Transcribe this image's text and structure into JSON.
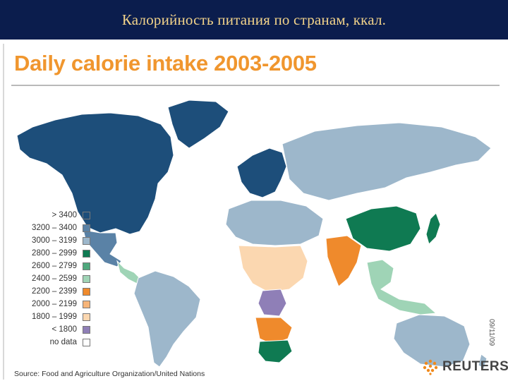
{
  "header": {
    "slide_title": "Калорийность питания по странам, ккал."
  },
  "map": {
    "title": "Daily calorie intake 2003-2005",
    "source": "Source: Food and Agriculture Organization/United Nations",
    "date_stamp": "09/11/09",
    "brand": "REUTERS",
    "colors": {
      "title": "#f0962e",
      "ocean": "#ffffff",
      "border": "#ffffff"
    },
    "legend": [
      {
        "label": "> 3400",
        "color": "#1d4e7a"
      },
      {
        "label": "3200 – 3400",
        "color": "#5a82a6"
      },
      {
        "label": "3000 – 3199",
        "color": "#9db7cb"
      },
      {
        "label": "2800 – 2999",
        "color": "#0f7a52"
      },
      {
        "label": "2600 – 2799",
        "color": "#4fa87d"
      },
      {
        "label": "2400 – 2599",
        "color": "#9fd4b6"
      },
      {
        "label": "2200 – 2399",
        "color": "#ef8a2c"
      },
      {
        "label": "2000 – 2199",
        "color": "#f6b478"
      },
      {
        "label": "1800 – 1999",
        "color": "#fbd7b0"
      },
      {
        "label": "< 1800",
        "color": "#8f7fb7"
      },
      {
        "label": "no data",
        "color": "#ffffff"
      }
    ],
    "regions": [
      {
        "name": "North America",
        "category": "> 3400"
      },
      {
        "name": "Greenland",
        "category": "> 3400"
      },
      {
        "name": "Mexico",
        "category": "3200 – 3400"
      },
      {
        "name": "Central America",
        "category": "2400 – 2599"
      },
      {
        "name": "South America",
        "category": "3000 – 3199"
      },
      {
        "name": "Western Europe",
        "category": "> 3400"
      },
      {
        "name": "Russia and Central Asia",
        "category": "3000 – 3199"
      },
      {
        "name": "China",
        "category": "2800 – 2999"
      },
      {
        "name": "India",
        "category": "2200 – 2399"
      },
      {
        "name": "North Africa",
        "category": "3000 – 3199"
      },
      {
        "name": "Central Africa",
        "category": "1800 – 1999"
      },
      {
        "name": "DR Congo",
        "category": "< 1800"
      },
      {
        "name": "Southern Africa",
        "category": "2200 – 2399"
      },
      {
        "name": "South Africa",
        "category": "2800 – 2999"
      },
      {
        "name": "Australia",
        "category": "3000 – 3199"
      },
      {
        "name": "Japan",
        "category": "2800 – 2999"
      },
      {
        "name": "Southeast Asia",
        "category": "2400 – 2599"
      }
    ]
  }
}
